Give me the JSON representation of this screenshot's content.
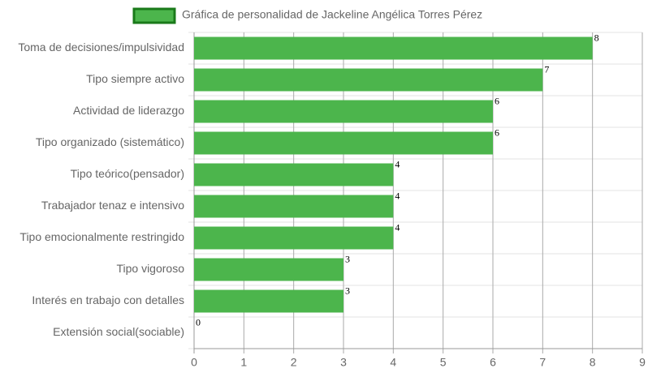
{
  "chart_data": {
    "type": "bar",
    "categories": [
      "Toma de decisiones/impulsividad",
      "Tipo siempre activo",
      "Actividad de liderazgo",
      "Tipo organizado (sistemático)",
      "Tipo teórico(pensador)",
      "Trabajador tenaz e intensivo",
      "Tipo emocionalmente restringido",
      "Tipo vigoroso",
      "Interés en trabajo con detalles",
      "Extensión social(sociable)"
    ],
    "series": [
      {
        "name": "Gráfica de personalidad de Jackeline Angélica Torres Pérez",
        "color": "#4cb54c",
        "values": [
          8,
          7,
          6,
          6,
          4,
          4,
          4,
          3,
          3,
          0
        ]
      }
    ],
    "xlim": [
      0,
      9
    ],
    "xticks": [
      0,
      1,
      2,
      3,
      4,
      5,
      6,
      7,
      8,
      9
    ],
    "grid": true
  }
}
